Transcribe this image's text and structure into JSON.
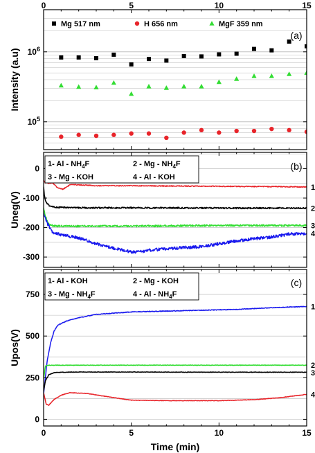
{
  "chart_data": [
    {
      "type": "scatter",
      "panel_label": "(a)",
      "ylabel": "Intensity (a.u)",
      "xlim": [
        0,
        15
      ],
      "ylim": [
        40000,
        4000000
      ],
      "log_y": true,
      "grid": "horizontal",
      "legend_position": "top",
      "x_ticks": [
        "0",
        "5",
        "10",
        "15"
      ],
      "y_ticks": [
        {
          "value": 100000,
          "base": "10",
          "exp": "5"
        },
        {
          "value": 1000000,
          "base": "10",
          "exp": "6"
        }
      ],
      "series": [
        {
          "name": "Mg 517 nm",
          "color": "#000000",
          "marker": "square",
          "x": [
            1,
            2,
            3,
            4,
            5,
            6,
            7,
            8,
            9,
            10,
            11,
            12,
            13,
            14,
            15
          ],
          "y": [
            830000,
            830000,
            810000,
            910000,
            660000,
            790000,
            750000,
            870000,
            860000,
            920000,
            940000,
            1100000,
            1050000,
            1400000,
            1200000
          ]
        },
        {
          "name": "H 656 nm",
          "color": "#e8242a",
          "marker": "circle",
          "x": [
            1,
            2,
            3,
            4,
            5,
            6,
            7,
            8,
            9,
            10,
            11,
            12,
            13,
            14,
            15
          ],
          "y": [
            61000,
            65000,
            63000,
            65000,
            68000,
            68000,
            59000,
            70000,
            76000,
            70000,
            74000,
            74000,
            79000,
            76000,
            72000
          ]
        },
        {
          "name": "MgF 359 nm",
          "color": "#33dd33",
          "marker": "triangle",
          "x": [
            1,
            2,
            3,
            4,
            5,
            6,
            7,
            8,
            9,
            10,
            11,
            12,
            13,
            14,
            15
          ],
          "y": [
            330000,
            315000,
            310000,
            360000,
            250000,
            320000,
            305000,
            320000,
            320000,
            370000,
            410000,
            450000,
            450000,
            480000,
            500000
          ]
        }
      ]
    },
    {
      "type": "line",
      "panel_label": "(b)",
      "ylabel": "Uneg(V)",
      "xlim": [
        0,
        15
      ],
      "ylim": [
        -335,
        55
      ],
      "grid": "horizontal",
      "y_ticks": [
        0,
        -100,
        -200,
        -300
      ],
      "legend": [
        {
          "num": "1-",
          "text": "Al - NH",
          "sub": "4",
          "tail": "F"
        },
        {
          "num": "2 -",
          "text": "Mg - NH",
          "sub": "4",
          "tail": "F"
        },
        {
          "num": "3 -",
          "text": "Mg - KOH",
          "sub": "",
          "tail": ""
        },
        {
          "num": "4 -",
          "text": "Al - KOH",
          "sub": "",
          "tail": ""
        }
      ],
      "series": [
        {
          "name": "1",
          "color": "#e8242a",
          "x": [
            0,
            0.1,
            0.3,
            0.5,
            0.8,
            1.1,
            1.5,
            2,
            3,
            5,
            7,
            10,
            13,
            15
          ],
          "y": [
            -40,
            -48,
            -50,
            -48,
            -65,
            -70,
            -55,
            -55,
            -58,
            -58,
            -59,
            -60,
            -61,
            -62
          ],
          "noise": 1.5
        },
        {
          "name": "2",
          "color": "#000000",
          "x": [
            0,
            0.05,
            0.15,
            0.3,
            0.6,
            1,
            2,
            5,
            10,
            15
          ],
          "y": [
            -60,
            -95,
            -115,
            -125,
            -130,
            -132,
            -133,
            -133,
            -134,
            -134
          ],
          "noise": 2.5
        },
        {
          "name": "3",
          "color": "#33dd33",
          "x": [
            0,
            0.1,
            0.25,
            0.4,
            0.7,
            1,
            2,
            5,
            10,
            15
          ],
          "y": [
            -135,
            -160,
            -185,
            -192,
            -195,
            -195,
            -195,
            -195,
            -193,
            -193
          ],
          "noise": 3
        },
        {
          "name": "4",
          "color": "#1a1aee",
          "x": [
            0,
            0.2,
            0.5,
            1,
            2,
            3,
            4,
            5,
            5.5,
            6,
            7,
            8,
            9,
            10,
            11,
            12,
            13,
            14,
            15
          ],
          "y": [
            -150,
            -185,
            -215,
            -225,
            -235,
            -255,
            -270,
            -283,
            -282,
            -277,
            -272,
            -268,
            -265,
            -255,
            -245,
            -238,
            -232,
            -222,
            -220
          ],
          "noise": 5
        }
      ],
      "end_labels": [
        "1",
        "2",
        "3",
        "4"
      ]
    },
    {
      "type": "line",
      "panel_label": "(c)",
      "ylabel": "Upos(V)",
      "xlabel": "Time (min)",
      "xlim": [
        0,
        15
      ],
      "ylim": [
        -40,
        900
      ],
      "grid": "horizontal",
      "x_ticks": [
        "0",
        "5",
        "10",
        "15"
      ],
      "y_ticks": [
        0,
        250,
        500,
        750
      ],
      "legend": [
        {
          "num": "1-",
          "text": "Al - KOH",
          "sub": "",
          "tail": ""
        },
        {
          "num": "2 -",
          "text": "Mg - KOH",
          "sub": "",
          "tail": ""
        },
        {
          "num": "3 -",
          "text": "Mg - NH",
          "sub": "4",
          "tail": "F"
        },
        {
          "num": "4 -",
          "text": "Al - NH",
          "sub": "4",
          "tail": "F"
        }
      ],
      "series": [
        {
          "name": "1",
          "color": "#1a1aee",
          "x": [
            0,
            0.2,
            0.4,
            0.6,
            0.8,
            1,
            1.3,
            2,
            3,
            5,
            7,
            9,
            11,
            13,
            15
          ],
          "y": [
            150,
            350,
            460,
            530,
            565,
            575,
            590,
            610,
            630,
            645,
            650,
            655,
            660,
            670,
            678
          ],
          "noise": 2
        },
        {
          "name": "2",
          "color": "#33dd33",
          "x": [
            0,
            0.1,
            0.3,
            1,
            5,
            10,
            15
          ],
          "y": [
            240,
            320,
            325,
            325,
            325,
            325,
            325
          ],
          "noise": 1.5
        },
        {
          "name": "3",
          "color": "#000000",
          "x": [
            0,
            0.1,
            0.3,
            0.6,
            1,
            2,
            5,
            10,
            15
          ],
          "y": [
            170,
            230,
            268,
            280,
            283,
            284,
            284,
            283,
            283
          ],
          "noise": 1.5
        },
        {
          "name": "4",
          "color": "#e8242a",
          "x": [
            0,
            0.15,
            0.3,
            0.6,
            1,
            1.5,
            2.5,
            4,
            5,
            7,
            10,
            12,
            13.5,
            15
          ],
          "y": [
            160,
            90,
            85,
            120,
            145,
            160,
            155,
            130,
            115,
            112,
            112,
            118,
            130,
            150
          ],
          "noise": 1.5
        }
      ],
      "end_labels": [
        "1",
        "2",
        "3",
        "4"
      ]
    }
  ]
}
